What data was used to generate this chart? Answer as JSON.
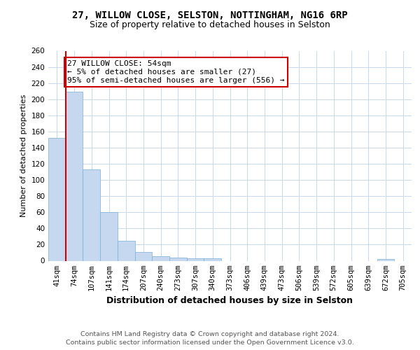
{
  "title1": "27, WILLOW CLOSE, SELSTON, NOTTINGHAM, NG16 6RP",
  "title2": "Size of property relative to detached houses in Selston",
  "xlabel": "Distribution of detached houses by size in Selston",
  "ylabel": "Number of detached properties",
  "categories": [
    "41sqm",
    "74sqm",
    "107sqm",
    "141sqm",
    "174sqm",
    "207sqm",
    "240sqm",
    "273sqm",
    "307sqm",
    "340sqm",
    "373sqm",
    "406sqm",
    "439sqm",
    "473sqm",
    "506sqm",
    "539sqm",
    "572sqm",
    "605sqm",
    "639sqm",
    "672sqm",
    "705sqm"
  ],
  "values": [
    152,
    209,
    113,
    60,
    25,
    11,
    6,
    4,
    3,
    3,
    0,
    0,
    0,
    0,
    0,
    0,
    0,
    0,
    0,
    2,
    0
  ],
  "bar_color": "#c5d8f0",
  "bar_edge_color": "#7bafd4",
  "vline_color": "#cc0000",
  "annotation_text": "27 WILLOW CLOSE: 54sqm\n← 5% of detached houses are smaller (27)\n95% of semi-detached houses are larger (556) →",
  "annotation_box_color": "white",
  "annotation_box_edge": "#cc0000",
  "footer": "Contains HM Land Registry data © Crown copyright and database right 2024.\nContains public sector information licensed under the Open Government Licence v3.0.",
  "ylim": [
    0,
    260
  ],
  "yticks": [
    0,
    20,
    40,
    60,
    80,
    100,
    120,
    140,
    160,
    180,
    200,
    220,
    240,
    260
  ],
  "grid_color": "#c8d8ea",
  "title1_fontsize": 10,
  "title2_fontsize": 9,
  "xlabel_fontsize": 9,
  "ylabel_fontsize": 8,
  "tick_fontsize": 7.5,
  "footer_fontsize": 6.8,
  "annotation_fontsize": 8
}
